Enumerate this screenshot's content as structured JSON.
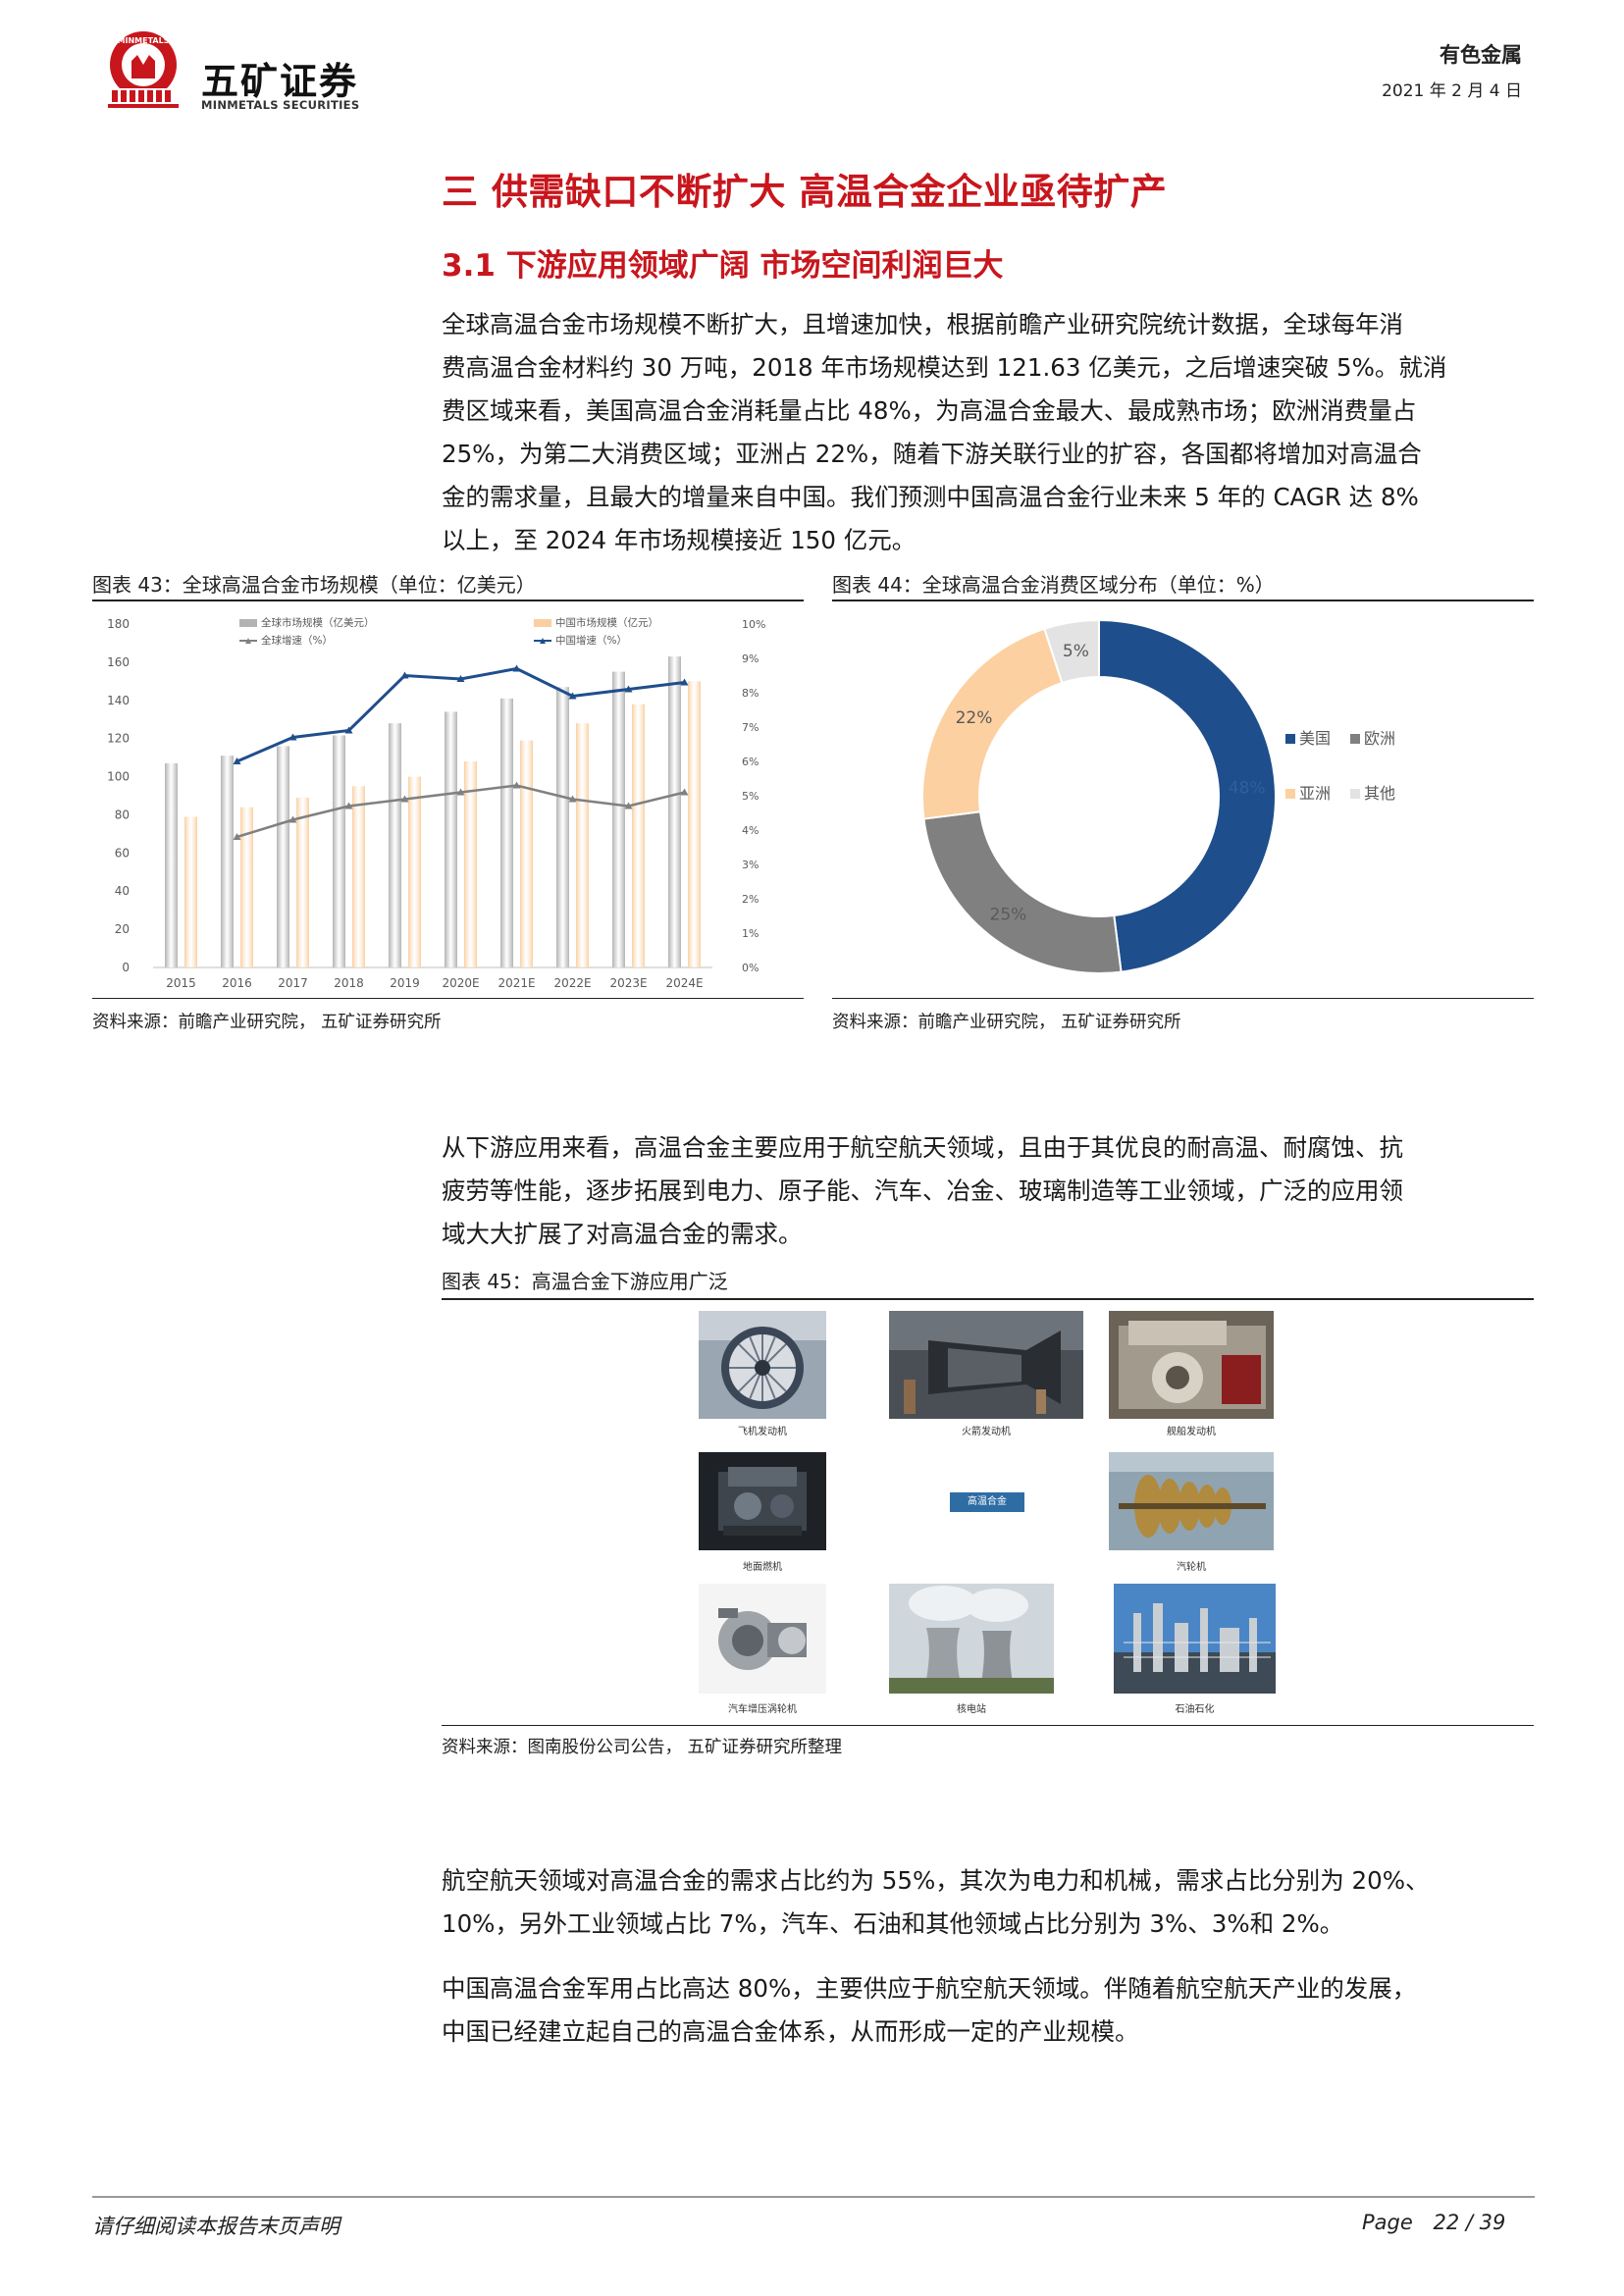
{
  "header": {
    "company_cn": "五矿证券",
    "company_en": "MINMETALS SECURITIES",
    "logo_arc_text": "MINMETALS",
    "industry": "有色金属",
    "date": "2021 年 2 月 4 日"
  },
  "section_title": "三 供需缺口不断扩大 高温合金企业亟待扩产",
  "subsection_title": "3.1 下游应用领域广阔 市场空间利润巨大",
  "paragraphs": {
    "p1_lines": [
      "全球高温合金市场规模不断扩大，且增速加快，根据前瞻产业研究院统计数据，全球每年消",
      "费高温合金材料约 30 万吨，2018 年市场规模达到 121.63 亿美元，之后增速突破 5%。就消",
      "费区域来看，美国高温合金消耗量占比 48%，为高温合金最大、最成熟市场；欧洲消费量占",
      "25%，为第二大消费区域；亚洲占 22%，随着下游关联行业的扩容，各国都将增加对高温合",
      "金的需求量，且最大的增量来自中国。我们预测中国高温合金行业未来 5 年的 CAGR 达 8%",
      "以上，至 2024 年市场规模接近 150 亿元。"
    ],
    "p2_lines": [
      "从下游应用来看，高温合金主要应用于航空航天领域，且由于其优良的耐高温、耐腐蚀、抗",
      "疲劳等性能，逐步拓展到电力、原子能、汽车、冶金、玻璃制造等工业领域，广泛的应用领",
      "域大大扩展了对高温合金的需求。"
    ],
    "p3_lines": [
      "航空航天领域对高温合金的需求占比约为 55%，其次为电力和机械，需求占比分别为 20%、",
      "10%，另外工业领域占比 7%，汽车、石油和其他领域占比分别为 3%、3%和 2%。"
    ],
    "p4_lines": [
      "中国高温合金军用占比高达 80%，主要供应于航空航天领域。伴随着航空航天产业的发展，",
      "中国已经建立起自己的高温合金体系，从而形成一定的产业规模。"
    ]
  },
  "figure43": {
    "caption": "图表 43：全球高温合金市场规模（单位：亿美元）",
    "source": "资料来源：前瞻产业研究院， 五矿证券研究所"
  },
  "figure44": {
    "caption": "图表 44：全球高温合金消费区域分布（单位：%）",
    "source": "资料来源：前瞻产业研究院， 五矿证券研究所"
  },
  "figure45": {
    "caption": "图表 45：高温合金下游应用广泛",
    "source": "资料来源：图南股份公司公告， 五矿证券研究所整理",
    "center_label": "高温合金",
    "images": [
      {
        "label": "飞机发动机",
        "icon": "jet-engine-photo"
      },
      {
        "label": "火箭发动机",
        "icon": "rocket-engine-photo"
      },
      {
        "label": "舰船发动机",
        "icon": "marine-engine-photo"
      },
      {
        "label": "地面燃机",
        "icon": "gas-turbine-photo"
      },
      {
        "label": "汽轮机",
        "icon": "steam-turbine-photo"
      },
      {
        "label": "汽车增压涡轮机",
        "icon": "turbocharger-photo"
      },
      {
        "label": "核电站",
        "icon": "nuclear-plant-photo"
      },
      {
        "label": "石油石化",
        "icon": "petrochemical-photo"
      }
    ]
  },
  "chart_data": [
    {
      "type": "bar",
      "categories": [
        "2015",
        "2016",
        "2017",
        "2018",
        "2019",
        "2020E",
        "2021E",
        "2022E",
        "2023E",
        "2024E"
      ],
      "series": [
        {
          "name": "全球市场规模（亿美元）",
          "kind": "bar",
          "axis": "left",
          "color": "#b3b3b3",
          "values": [
            107,
            111,
            116,
            121.63,
            128,
            134,
            141,
            147,
            155,
            163
          ]
        },
        {
          "name": "中国市场规模（亿元）",
          "kind": "bar",
          "axis": "left",
          "color": "#f9cfa2",
          "values": [
            79,
            84,
            89,
            95,
            100,
            108,
            119,
            128,
            138,
            150
          ]
        },
        {
          "name": "全球增速（%）",
          "kind": "line",
          "axis": "right",
          "color": "#808080",
          "values": [
            null,
            3.8,
            4.3,
            4.7,
            4.9,
            5.1,
            5.3,
            4.9,
            4.7,
            5.1
          ]
        },
        {
          "name": "中国增速（%）",
          "kind": "line",
          "axis": "right",
          "color": "#1f4e8c",
          "values": [
            null,
            6.0,
            6.7,
            6.9,
            8.5,
            8.4,
            8.7,
            7.9,
            8.1,
            8.3
          ]
        }
      ],
      "ylim": [
        0,
        180
      ],
      "yticks": [
        "0",
        "20",
        "40",
        "60",
        "80",
        "100",
        "120",
        "140",
        "160",
        "180"
      ],
      "y2lim": [
        0,
        10
      ],
      "y2ticks": [
        "0%",
        "1%",
        "2%",
        "3%",
        "4%",
        "5%",
        "6%",
        "7%",
        "8%",
        "9%",
        "10%"
      ],
      "grid": false,
      "legend": "top"
    },
    {
      "type": "pie",
      "style": "donut",
      "labels": [
        "美国",
        "欧洲",
        "亚洲",
        "其他"
      ],
      "values": [
        48,
        25,
        22,
        5
      ],
      "label_texts": [
        "48%",
        "25%",
        "22%",
        "5%"
      ],
      "colors": [
        "#1f4e8c",
        "#808080",
        "#fcd0a1",
        "#e3e3e3"
      ],
      "legend": "right"
    }
  ],
  "footer": {
    "disclaimer": "请仔细阅读本报告末页声明",
    "page_label": "Page",
    "page_number": "22 / 39"
  }
}
